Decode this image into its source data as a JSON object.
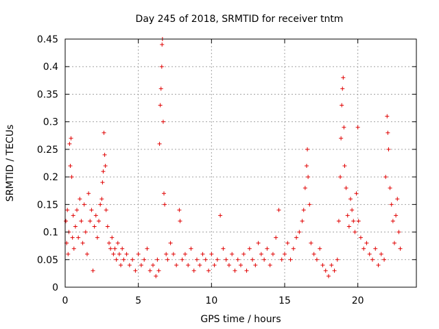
{
  "chart_data": {
    "type": "scatter",
    "title": "Day 245 of 2018, SRMTID for receiver tntm",
    "xlabel": "GPS time / hours",
    "ylabel": "SRMTID / TECUs",
    "xlim": [
      0,
      24
    ],
    "ylim": [
      0,
      0.45
    ],
    "xticks": [
      0,
      5,
      10,
      15,
      20
    ],
    "xtick_labels": [
      "0",
      "5",
      "10",
      "15",
      "20"
    ],
    "yticks": [
      0,
      0.05,
      0.1,
      0.15,
      0.2,
      0.25,
      0.3,
      0.35,
      0.4,
      0.45
    ],
    "ytick_labels": [
      "0",
      "0.05",
      "0.1",
      "0.15",
      "0.2",
      "0.25",
      "0.3",
      "0.35",
      "0.4",
      "0.45"
    ],
    "grid": true,
    "marker": "+",
    "series": [
      {
        "name": "SRMTID",
        "color": "#e00000",
        "points": [
          [
            0.05,
            0.12
          ],
          [
            0.1,
            0.08
          ],
          [
            0.15,
            0.14
          ],
          [
            0.2,
            0.06
          ],
          [
            0.25,
            0.1
          ],
          [
            0.3,
            0.26
          ],
          [
            0.35,
            0.22
          ],
          [
            0.4,
            0.27
          ],
          [
            0.45,
            0.2
          ],
          [
            0.5,
            0.09
          ],
          [
            0.55,
            0.13
          ],
          [
            0.6,
            0.07
          ],
          [
            0.7,
            0.11
          ],
          [
            0.8,
            0.14
          ],
          [
            0.9,
            0.09
          ],
          [
            1.0,
            0.16
          ],
          [
            1.1,
            0.12
          ],
          [
            1.2,
            0.08
          ],
          [
            1.3,
            0.15
          ],
          [
            1.4,
            0.1
          ],
          [
            1.5,
            0.06
          ],
          [
            1.6,
            0.17
          ],
          [
            1.7,
            0.12
          ],
          [
            1.8,
            0.14
          ],
          [
            1.9,
            0.03
          ],
          [
            2.0,
            0.11
          ],
          [
            2.1,
            0.13
          ],
          [
            2.2,
            0.09
          ],
          [
            2.3,
            0.12
          ],
          [
            2.4,
            0.15
          ],
          [
            2.5,
            0.16
          ],
          [
            2.55,
            0.19
          ],
          [
            2.6,
            0.21
          ],
          [
            2.65,
            0.28
          ],
          [
            2.7,
            0.24
          ],
          [
            2.75,
            0.22
          ],
          [
            2.8,
            0.14
          ],
          [
            2.9,
            0.11
          ],
          [
            3.0,
            0.08
          ],
          [
            3.1,
            0.07
          ],
          [
            3.2,
            0.09
          ],
          [
            3.3,
            0.06
          ],
          [
            3.4,
            0.07
          ],
          [
            3.5,
            0.05
          ],
          [
            3.6,
            0.08
          ],
          [
            3.7,
            0.06
          ],
          [
            3.8,
            0.04
          ],
          [
            3.9,
            0.07
          ],
          [
            4.0,
            0.05
          ],
          [
            4.2,
            0.06
          ],
          [
            4.4,
            0.04
          ],
          [
            4.6,
            0.05
          ],
          [
            4.8,
            0.03
          ],
          [
            5.0,
            0.06
          ],
          [
            5.2,
            0.04
          ],
          [
            5.4,
            0.05
          ],
          [
            5.6,
            0.07
          ],
          [
            5.8,
            0.03
          ],
          [
            6.0,
            0.04
          ],
          [
            6.2,
            0.02
          ],
          [
            6.3,
            0.05
          ],
          [
            6.4,
            0.03
          ],
          [
            6.45,
            0.26
          ],
          [
            6.5,
            0.33
          ],
          [
            6.55,
            0.36
          ],
          [
            6.6,
            0.4
          ],
          [
            6.62,
            0.44
          ],
          [
            6.65,
            0.45
          ],
          [
            6.7,
            0.3
          ],
          [
            6.75,
            0.17
          ],
          [
            6.8,
            0.15
          ],
          [
            6.9,
            0.06
          ],
          [
            7.0,
            0.05
          ],
          [
            7.2,
            0.08
          ],
          [
            7.4,
            0.06
          ],
          [
            7.6,
            0.04
          ],
          [
            7.8,
            0.14
          ],
          [
            7.85,
            0.12
          ],
          [
            8.0,
            0.05
          ],
          [
            8.2,
            0.06
          ],
          [
            8.4,
            0.04
          ],
          [
            8.6,
            0.07
          ],
          [
            8.8,
            0.03
          ],
          [
            9.0,
            0.05
          ],
          [
            9.2,
            0.04
          ],
          [
            9.4,
            0.06
          ],
          [
            9.6,
            0.05
          ],
          [
            9.8,
            0.03
          ],
          [
            10.0,
            0.06
          ],
          [
            10.2,
            0.04
          ],
          [
            10.4,
            0.05
          ],
          [
            10.6,
            0.13
          ],
          [
            10.8,
            0.07
          ],
          [
            11.0,
            0.05
          ],
          [
            11.2,
            0.04
          ],
          [
            11.4,
            0.06
          ],
          [
            11.6,
            0.03
          ],
          [
            11.8,
            0.05
          ],
          [
            12.0,
            0.04
          ],
          [
            12.2,
            0.06
          ],
          [
            12.4,
            0.03
          ],
          [
            12.6,
            0.07
          ],
          [
            12.8,
            0.05
          ],
          [
            13.0,
            0.04
          ],
          [
            13.2,
            0.08
          ],
          [
            13.4,
            0.06
          ],
          [
            13.6,
            0.05
          ],
          [
            13.8,
            0.07
          ],
          [
            14.0,
            0.04
          ],
          [
            14.2,
            0.06
          ],
          [
            14.4,
            0.09
          ],
          [
            14.6,
            0.14
          ],
          [
            14.8,
            0.05
          ],
          [
            15.0,
            0.06
          ],
          [
            15.2,
            0.08
          ],
          [
            15.4,
            0.05
          ],
          [
            15.6,
            0.07
          ],
          [
            15.8,
            0.09
          ],
          [
            16.0,
            0.1
          ],
          [
            16.2,
            0.12
          ],
          [
            16.3,
            0.14
          ],
          [
            16.4,
            0.18
          ],
          [
            16.5,
            0.22
          ],
          [
            16.55,
            0.25
          ],
          [
            16.6,
            0.2
          ],
          [
            16.7,
            0.15
          ],
          [
            16.8,
            0.08
          ],
          [
            17.0,
            0.06
          ],
          [
            17.2,
            0.05
          ],
          [
            17.4,
            0.07
          ],
          [
            17.6,
            0.04
          ],
          [
            17.8,
            0.03
          ],
          [
            18.0,
            0.02
          ],
          [
            18.2,
            0.04
          ],
          [
            18.4,
            0.03
          ],
          [
            18.6,
            0.05
          ],
          [
            18.7,
            0.12
          ],
          [
            18.8,
            0.2
          ],
          [
            18.85,
            0.27
          ],
          [
            18.9,
            0.33
          ],
          [
            18.95,
            0.36
          ],
          [
            19.0,
            0.38
          ],
          [
            19.05,
            0.29
          ],
          [
            19.1,
            0.22
          ],
          [
            19.2,
            0.18
          ],
          [
            19.3,
            0.13
          ],
          [
            19.4,
            0.11
          ],
          [
            19.5,
            0.16
          ],
          [
            19.6,
            0.14
          ],
          [
            19.7,
            0.12
          ],
          [
            19.8,
            0.1
          ],
          [
            19.9,
            0.17
          ],
          [
            20.0,
            0.29
          ],
          [
            20.05,
            0.12
          ],
          [
            20.2,
            0.09
          ],
          [
            20.4,
            0.07
          ],
          [
            20.6,
            0.08
          ],
          [
            20.8,
            0.06
          ],
          [
            21.0,
            0.05
          ],
          [
            21.2,
            0.07
          ],
          [
            21.4,
            0.04
          ],
          [
            21.6,
            0.06
          ],
          [
            21.8,
            0.05
          ],
          [
            21.9,
            0.2
          ],
          [
            22.0,
            0.31
          ],
          [
            22.05,
            0.28
          ],
          [
            22.1,
            0.25
          ],
          [
            22.2,
            0.18
          ],
          [
            22.3,
            0.15
          ],
          [
            22.4,
            0.12
          ],
          [
            22.5,
            0.08
          ],
          [
            22.6,
            0.13
          ],
          [
            22.7,
            0.16
          ],
          [
            22.8,
            0.1
          ],
          [
            22.9,
            0.07
          ]
        ]
      }
    ]
  }
}
